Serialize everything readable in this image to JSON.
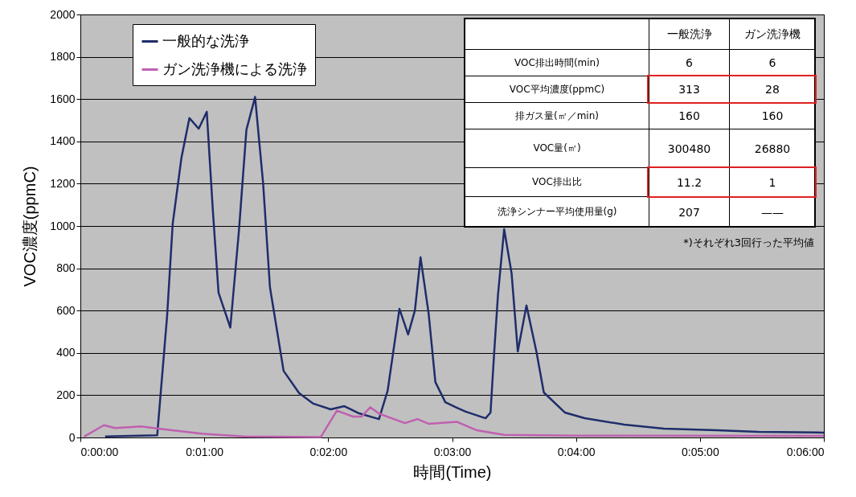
{
  "chart_data": {
    "type": "line",
    "xlabel": "時間(Time)",
    "ylabel": "VOC濃度(ppmC)",
    "xlim": [
      0,
      6
    ],
    "xticks": [
      {
        "value": 0,
        "label": "0:00:00"
      },
      {
        "value": 1,
        "label": "0:01:00"
      },
      {
        "value": 2,
        "label": "0:02:00"
      },
      {
        "value": 3,
        "label": "0:03:00"
      },
      {
        "value": 4,
        "label": "0:04:00"
      },
      {
        "value": 5,
        "label": "0:05:00"
      },
      {
        "value": 6,
        "label": "0:06:00"
      }
    ],
    "ylim": [
      0,
      2000
    ],
    "yticks": [
      0,
      200,
      400,
      600,
      800,
      1000,
      1200,
      1400,
      1600,
      1800,
      2000
    ],
    "grid": "y",
    "legend": "top left",
    "marker": "none",
    "line_style": "solid",
    "series": [
      {
        "name": "一般的な洗浄",
        "color": "#1f2d6b",
        "x": [
          0.2,
          0.62,
          0.7,
          0.745,
          0.815,
          0.88,
          0.955,
          1.02,
          1.07,
          1.115,
          1.21,
          1.28,
          1.34,
          1.41,
          1.475,
          1.53,
          1.64,
          1.765,
          1.88,
          2.02,
          2.13,
          2.25,
          2.41,
          2.48,
          2.575,
          2.645,
          2.7,
          2.745,
          2.81,
          2.865,
          2.945,
          3.04,
          3.11,
          3.27,
          3.31,
          3.34,
          3.37,
          3.42,
          3.48,
          3.53,
          3.6,
          3.68,
          3.74,
          3.91,
          4.07,
          4.39,
          4.71,
          5.14,
          5.47,
          6.0
        ],
        "values": [
          5,
          10,
          575,
          1010,
          1320,
          1510,
          1460,
          1540,
          1065,
          685,
          520,
          980,
          1455,
          1610,
          1200,
          710,
          315,
          210,
          160,
          133,
          148,
          114,
          87,
          222,
          608,
          487,
          601,
          852,
          589,
          262,
          167,
          140,
          122,
          91,
          118,
          407,
          673,
          985,
          776,
          407,
          624,
          407,
          213,
          118,
          91,
          61,
          42,
          34,
          27,
          23
        ]
      },
      {
        "name": "ガン洗浄機による洗浄",
        "color": "#c060b0",
        "x": [
          0.03,
          0.19,
          0.28,
          0.49,
          0.63,
          0.98,
          1.32,
          1.94,
          2.07,
          2.2,
          2.27,
          2.34,
          2.41,
          2.53,
          2.62,
          2.72,
          2.81,
          3.04,
          3.2,
          3.42,
          4.0,
          6.0
        ],
        "values": [
          4,
          58,
          45,
          52,
          42,
          18,
          5,
          2,
          127,
          99,
          99,
          143,
          113,
          87,
          68,
          87,
          65,
          74,
          34,
          12,
          9,
          8
        ]
      }
    ],
    "annotations": [
      "一般洗浄",
      "ガン洗浄機",
      "VOC排出時間(min)",
      "6",
      "6",
      "VOC平均濃度(ppmC)",
      "313",
      "28",
      "排ガス量(㎥／min)",
      "160",
      "160",
      "VOC量(㎥)",
      "300480",
      "26880",
      "VOC排出比",
      "11.2",
      "1",
      "洗浄シンナー平均使用量(g)",
      "207",
      "——",
      "*)それぞれ3回行った平均値"
    ]
  }
}
